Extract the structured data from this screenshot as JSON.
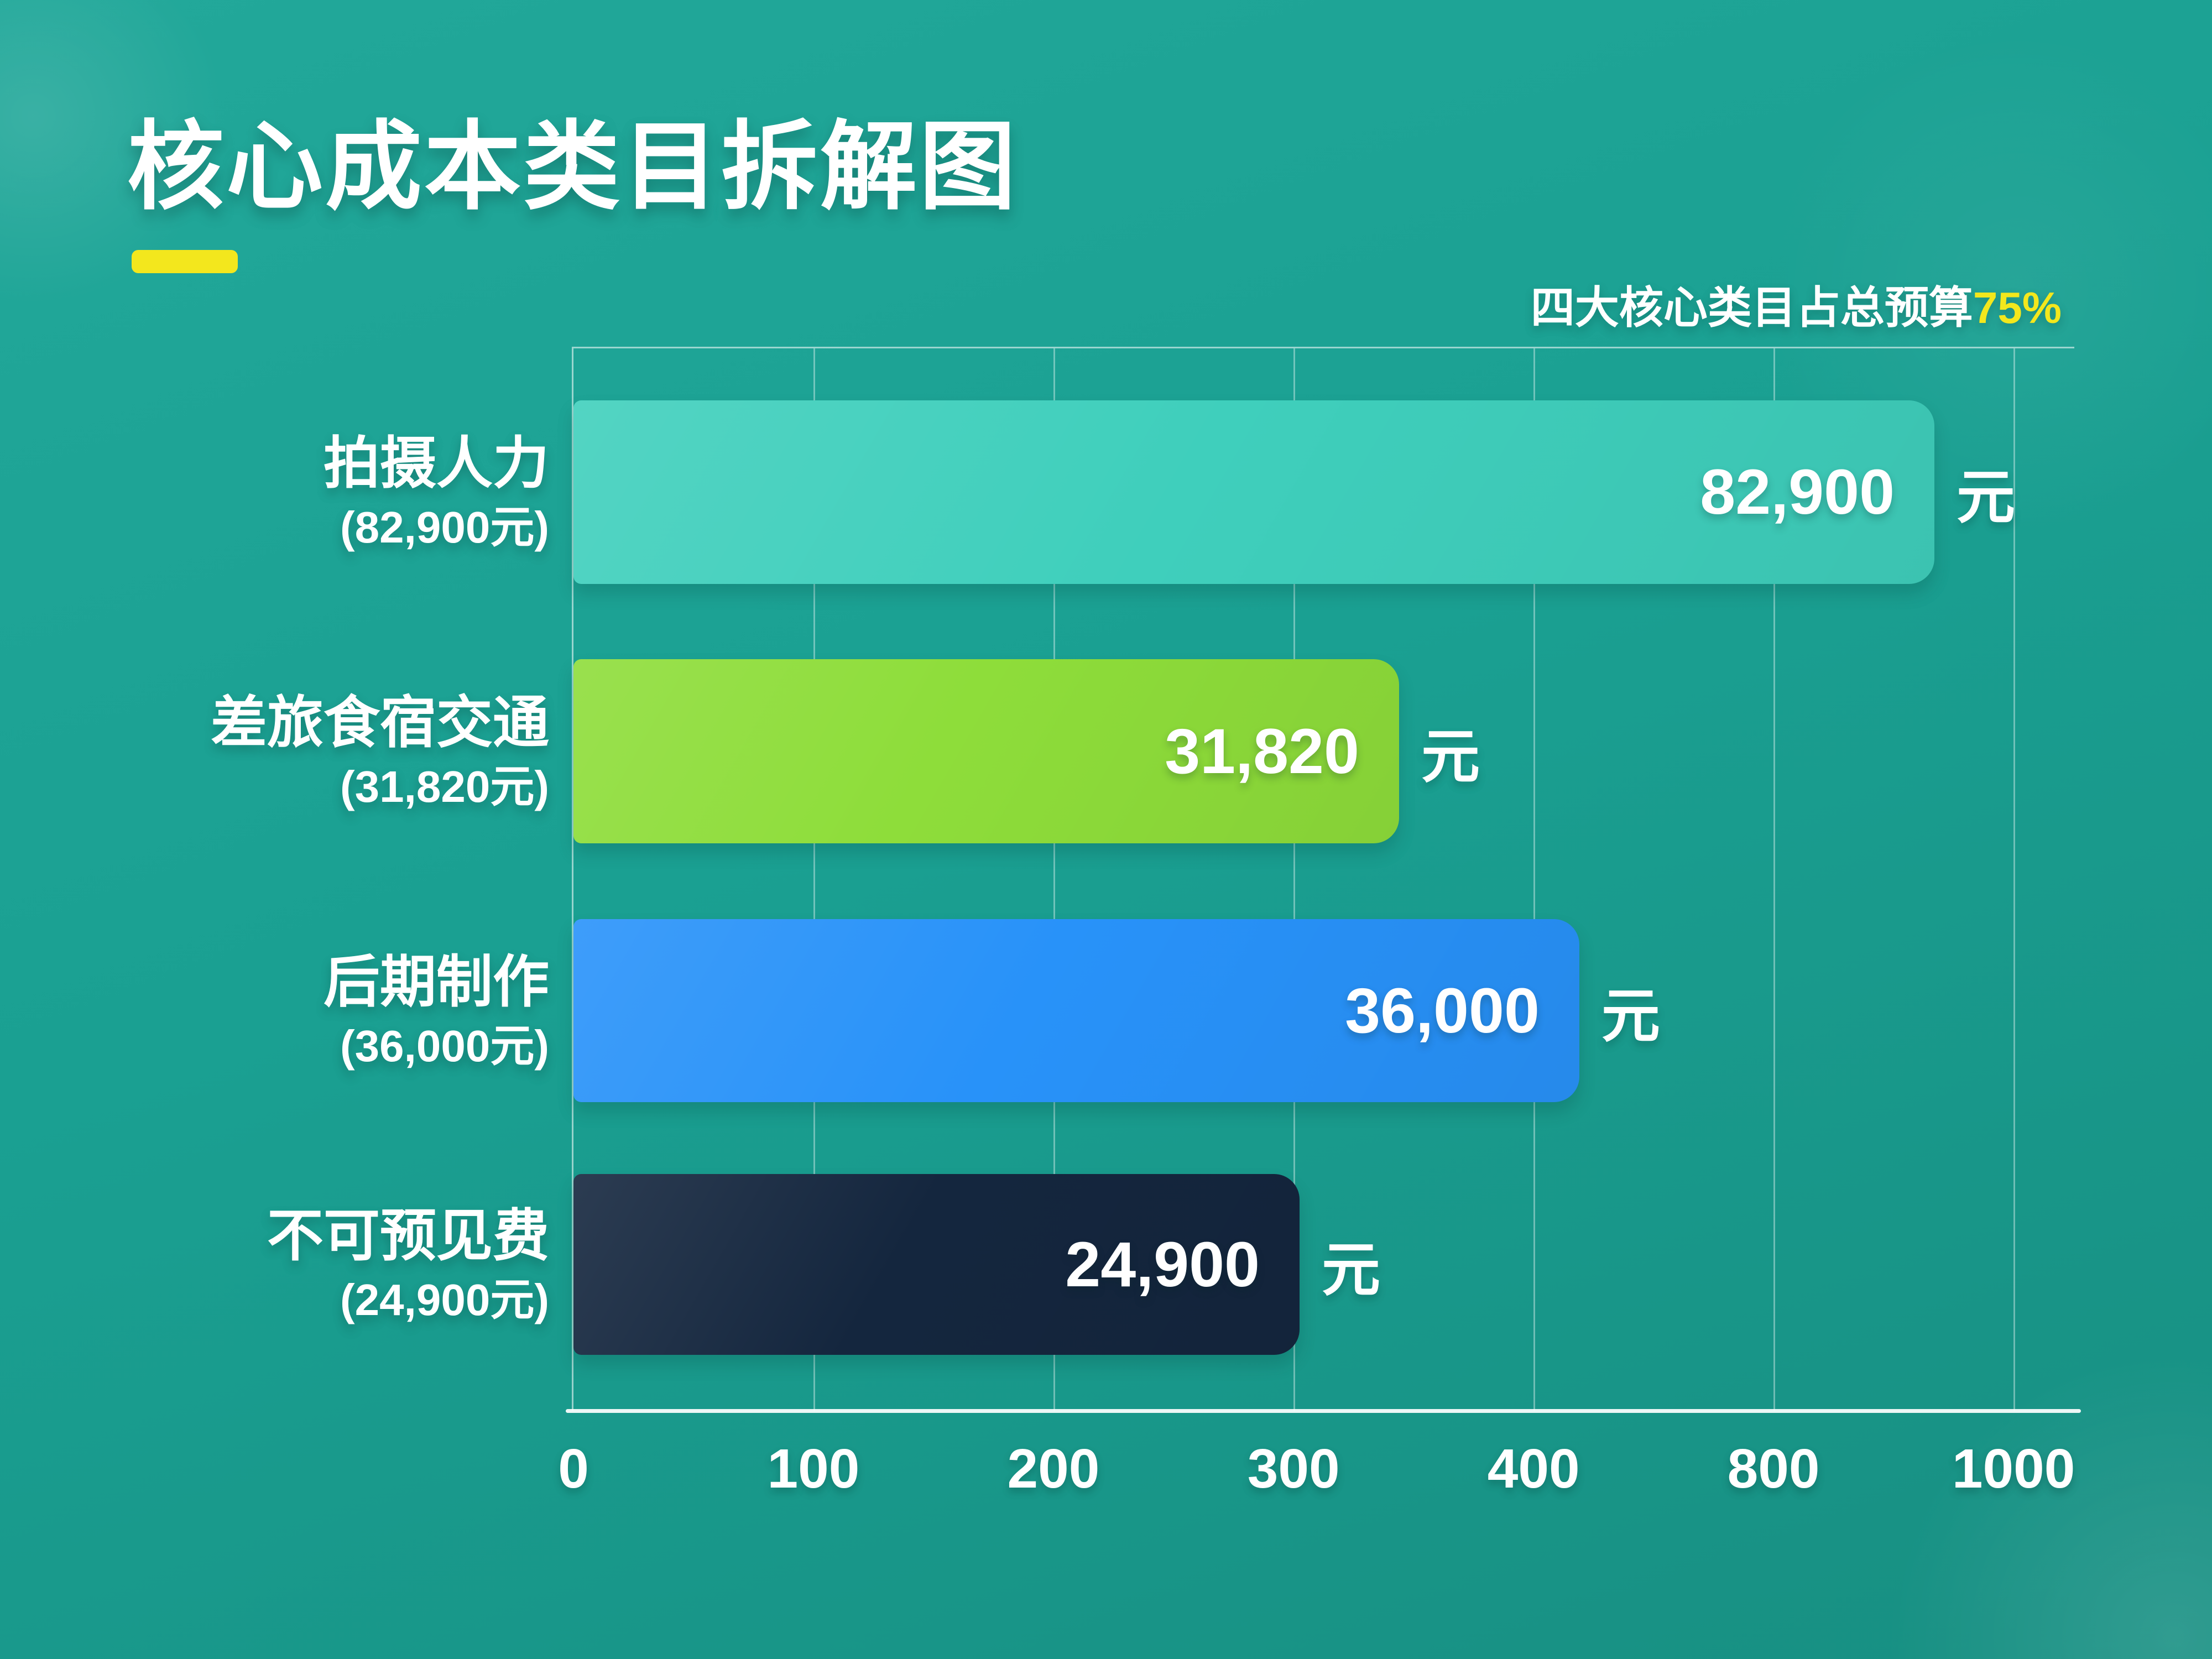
{
  "title": "核心成本类目拆解图",
  "subtitle": {
    "prefix": "四大核心类目占总预算",
    "highlight": "75%"
  },
  "colors": {
    "background": "#1aa092",
    "accent_yellow": "#f3e71d",
    "text": "#ffffff",
    "grid": "rgba(255,255,255,0.38)"
  },
  "chart_data": {
    "type": "bar",
    "orientation": "horizontal",
    "title": "核心成本类目拆解图",
    "annotation": "四大核心类目占总预算75%",
    "categories": [
      "拍摄人力",
      "差旅食宿交通",
      "后期制作",
      "不可预见费"
    ],
    "values": [
      82900,
      31820,
      36000,
      24900
    ],
    "unit": "元",
    "grid": true,
    "legend": false,
    "x_tick_labels": [
      "0",
      "100",
      "200",
      "300",
      "400",
      "800",
      "1000"
    ],
    "bars": [
      {
        "label": "拍摄人力",
        "sublabel": "(82,900元)",
        "value": 82900,
        "value_label": "82,900",
        "unit": "元",
        "color": "#3fcfbc",
        "fraction": 0.9068
      },
      {
        "label": "差旅食宿交通",
        "sublabel": "(31,820元)",
        "value": 31820,
        "value_label": "31,820",
        "unit": "元",
        "color": "#8edd3a",
        "fraction": 0.5501
      },
      {
        "label": "后期制作",
        "sublabel": "(36,000元)",
        "value": 36000,
        "value_label": "36,000",
        "unit": "元",
        "color": "#2892f9",
        "fraction": 0.6702
      },
      {
        "label": "不可预见费",
        "sublabel": "(24,900元)",
        "value": 24900,
        "value_label": "24,900",
        "unit": "元",
        "color": "#14263e",
        "fraction": 0.4838
      }
    ]
  }
}
